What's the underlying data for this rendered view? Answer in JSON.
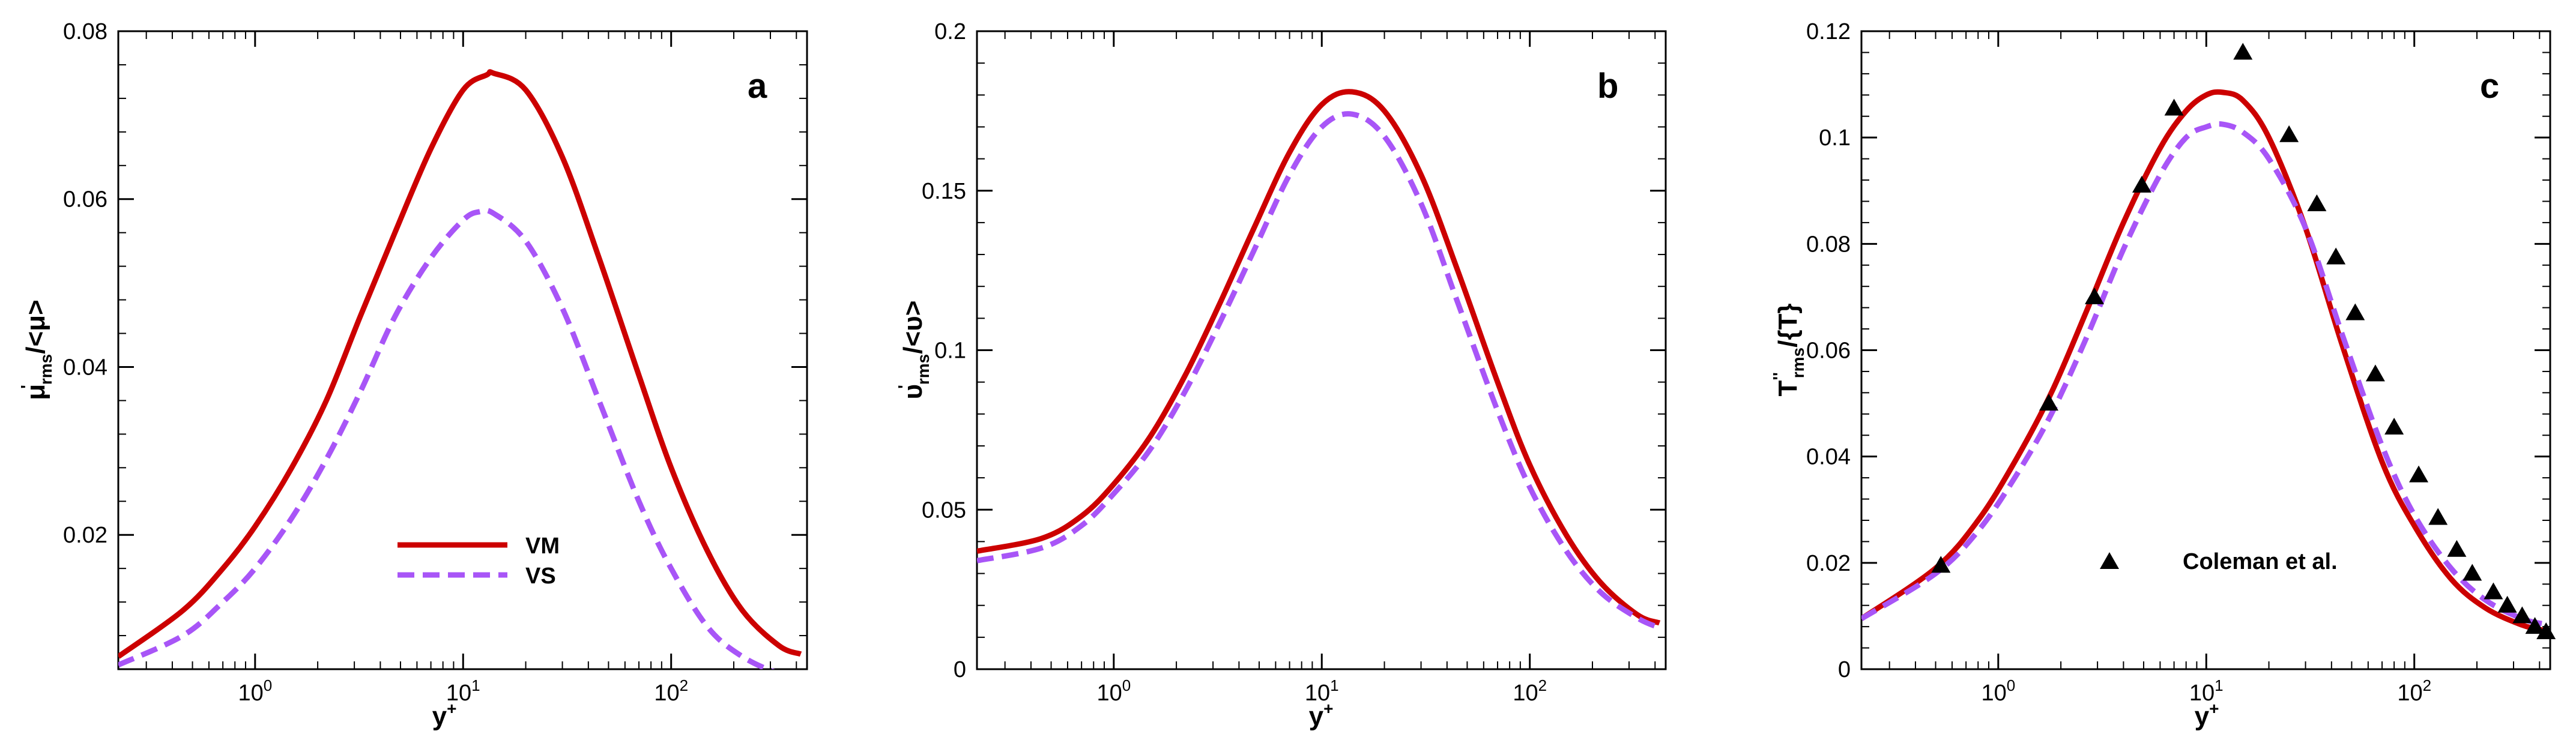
{
  "colors": {
    "VM": "#cc0000",
    "VS": "#a855f7",
    "Coleman": "#000000",
    "axis": "#000000"
  },
  "chart_data": [
    {
      "type": "line",
      "panel": "a",
      "xlabel": "y+",
      "ylabel": "μ'rms/<μ>",
      "x_scale": "log",
      "xlim": [
        0.22,
        450
      ],
      "ylim": [
        0.004,
        0.08
      ],
      "yticks": [
        0.02,
        0.04,
        0.06,
        0.08
      ],
      "ytick_labels": [
        "0.02",
        "0.04",
        "0.06",
        "0.08"
      ],
      "xticks": [
        1,
        10,
        100
      ],
      "xtick_labels": [
        "10",
        "10",
        "10"
      ],
      "xtick_exponents": [
        "0",
        "1",
        "2"
      ],
      "legend": {
        "position": "bottom-center",
        "entries": [
          "VM",
          "VS"
        ]
      },
      "series": [
        {
          "name": "VM",
          "style": "solid",
          "x": [
            0.22,
            0.45,
            0.7,
            1.0,
            1.5,
            2.2,
            3.2,
            4.7,
            7,
            10,
            13,
            14,
            20,
            30,
            45,
            70,
            100,
            150,
            220,
            330,
            420
          ],
          "y": [
            0.0055,
            0.011,
            0.016,
            0.021,
            0.028,
            0.036,
            0.046,
            0.056,
            0.066,
            0.073,
            0.0748,
            0.075,
            0.073,
            0.065,
            0.053,
            0.039,
            0.028,
            0.018,
            0.011,
            0.0068,
            0.0058
          ]
        },
        {
          "name": "VS",
          "style": "dashed",
          "x": [
            0.22,
            0.45,
            0.7,
            1.0,
            1.5,
            2.2,
            3.2,
            4.7,
            7,
            10,
            12,
            14,
            20,
            30,
            45,
            70,
            100,
            150,
            220,
            330,
            420
          ],
          "y": [
            0.0045,
            0.008,
            0.012,
            0.016,
            0.022,
            0.029,
            0.037,
            0.046,
            0.053,
            0.0575,
            0.0585,
            0.0583,
            0.055,
            0.047,
            0.036,
            0.024,
            0.016,
            0.009,
            0.0055,
            0.0035,
            0.0032
          ]
        }
      ]
    },
    {
      "type": "line",
      "panel": "b",
      "xlabel": "y+",
      "ylabel": "υ'rms/<υ>",
      "x_scale": "log",
      "xlim": [
        0.22,
        450
      ],
      "ylim": [
        0,
        0.2
      ],
      "yticks": [
        0,
        0.05,
        0.1,
        0.15,
        0.2
      ],
      "ytick_labels": [
        "0",
        "0.05",
        "0.1",
        "0.15",
        "0.2"
      ],
      "xticks": [
        1,
        10,
        100
      ],
      "xtick_labels": [
        "10",
        "10",
        "10"
      ],
      "xtick_exponents": [
        "0",
        "1",
        "2"
      ],
      "series": [
        {
          "name": "VM",
          "style": "solid",
          "x": [
            0.22,
            0.45,
            0.7,
            1.0,
            1.5,
            2.2,
            3.2,
            4.7,
            7,
            10,
            14,
            20,
            30,
            45,
            70,
            100,
            150,
            220,
            330,
            420
          ],
          "y": [
            0.037,
            0.041,
            0.048,
            0.058,
            0.073,
            0.092,
            0.114,
            0.138,
            0.162,
            0.177,
            0.181,
            0.175,
            0.155,
            0.125,
            0.09,
            0.064,
            0.042,
            0.027,
            0.017,
            0.0145
          ]
        },
        {
          "name": "VS",
          "style": "dashed",
          "x": [
            0.22,
            0.45,
            0.7,
            1.0,
            1.5,
            2.2,
            3.2,
            4.7,
            7,
            10,
            14,
            20,
            30,
            45,
            70,
            100,
            150,
            220,
            330,
            420
          ],
          "y": [
            0.034,
            0.038,
            0.045,
            0.055,
            0.069,
            0.087,
            0.108,
            0.131,
            0.155,
            0.17,
            0.174,
            0.167,
            0.146,
            0.115,
            0.081,
            0.057,
            0.037,
            0.024,
            0.016,
            0.013
          ]
        }
      ]
    },
    {
      "type": "line",
      "panel": "c",
      "xlabel": "y+",
      "ylabel": "T''rms/{T}",
      "x_scale": "log",
      "xlim": [
        0.22,
        450
      ],
      "ylim": [
        0,
        0.12
      ],
      "yticks": [
        0,
        0.02,
        0.04,
        0.06,
        0.08,
        0.1,
        0.12
      ],
      "ytick_labels": [
        "0",
        "0.02",
        "0.04",
        "0.06",
        "0.08",
        "0.1",
        "0.12"
      ],
      "xticks": [
        1,
        10,
        100
      ],
      "xtick_labels": [
        "10",
        "10",
        "10"
      ],
      "xtick_exponents": [
        "0",
        "1",
        "2"
      ],
      "legend": {
        "position": "bottom-center",
        "entries": [
          "Coleman et al."
        ]
      },
      "series": [
        {
          "name": "VM",
          "style": "solid",
          "x": [
            0.22,
            0.5,
            0.8,
            1.2,
            1.8,
            2.7,
            4,
            6,
            8,
            10,
            12,
            15,
            20,
            30,
            45,
            70,
            100,
            150,
            220,
            330,
            420
          ],
          "y": [
            0.0095,
            0.019,
            0.028,
            0.039,
            0.052,
            0.068,
            0.084,
            0.098,
            0.105,
            0.108,
            0.1085,
            0.107,
            0.1,
            0.083,
            0.061,
            0.039,
            0.027,
            0.017,
            0.0115,
            0.0083,
            0.0073
          ]
        },
        {
          "name": "VS",
          "style": "dashed",
          "x": [
            0.22,
            0.5,
            0.8,
            1.2,
            1.8,
            2.7,
            4,
            6,
            8,
            10,
            12,
            15,
            20,
            30,
            45,
            70,
            100,
            150,
            220,
            330,
            420
          ],
          "y": [
            0.0095,
            0.018,
            0.026,
            0.036,
            0.048,
            0.063,
            0.079,
            0.093,
            0.1,
            0.102,
            0.1025,
            0.101,
            0.096,
            0.083,
            0.063,
            0.042,
            0.029,
            0.019,
            0.013,
            0.0095,
            0.0085
          ]
        },
        {
          "name": "Coleman et al.",
          "style": "markers",
          "x": [
            0.53,
            1.75,
            2.9,
            4.9,
            7,
            15,
            25,
            34,
            42,
            52,
            65,
            80,
            105,
            130,
            160,
            190,
            240,
            280,
            330,
            380,
            430
          ],
          "y": [
            0.0195,
            0.05,
            0.07,
            0.091,
            0.1055,
            0.116,
            0.1005,
            0.0875,
            0.0775,
            0.067,
            0.0555,
            0.0455,
            0.0365,
            0.0285,
            0.0225,
            0.018,
            0.0145,
            0.012,
            0.01,
            0.008,
            0.007
          ]
        }
      ]
    }
  ],
  "panel_letters": [
    "a",
    "b",
    "c"
  ],
  "axis_texts": {
    "a": {
      "ylabel_main": "μ",
      "ylabel_sup": "'",
      "ylabel_sub": "rms",
      "ylabel_tail": "/<μ>"
    },
    "b": {
      "ylabel_main": "υ",
      "ylabel_sup": "'",
      "ylabel_sub": "rms",
      "ylabel_tail": "/<υ>"
    },
    "c": {
      "ylabel_main": "T",
      "ylabel_sup": "''",
      "ylabel_sub": "rms",
      "ylabel_tail": "/{T}"
    },
    "xlabel_main": "y",
    "xlabel_sup": "+"
  },
  "legend_labels": {
    "VM": "VM",
    "VS": "VS",
    "Coleman": "Coleman et al."
  }
}
